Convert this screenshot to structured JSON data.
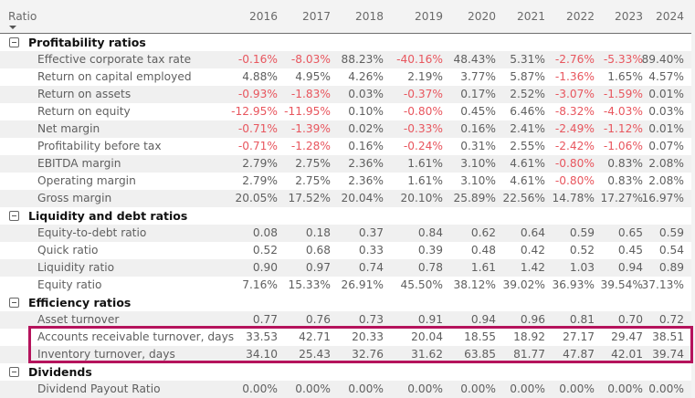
{
  "header": {
    "ratio_label": "Ratio",
    "sort_icon": "sort-descending-icon",
    "years": [
      "2016",
      "2017",
      "2018",
      "2019",
      "2020",
      "2021",
      "2022",
      "2023",
      "2024"
    ]
  },
  "groups": [
    {
      "label": "Profitability ratios",
      "toggle_icon": "collapse-minus-icon",
      "rows": [
        {
          "label": "Effective corporate tax rate",
          "values": [
            "-0.16%",
            "-8.03%",
            "88.23%",
            "-40.16%",
            "48.43%",
            "5.31%",
            "-2.76%",
            "-5.33%",
            "89.40%"
          ]
        },
        {
          "label": "Return on capital employed",
          "values": [
            "4.88%",
            "4.95%",
            "4.26%",
            "2.19%",
            "3.77%",
            "5.87%",
            "-1.36%",
            "1.65%",
            "4.57%"
          ]
        },
        {
          "label": "Return on assets",
          "values": [
            "-0.93%",
            "-1.83%",
            "0.03%",
            "-0.37%",
            "0.17%",
            "2.52%",
            "-3.07%",
            "-1.59%",
            "0.01%"
          ]
        },
        {
          "label": "Return on equity",
          "values": [
            "-12.95%",
            "-11.95%",
            "0.10%",
            "-0.80%",
            "0.45%",
            "6.46%",
            "-8.32%",
            "-4.03%",
            "0.03%"
          ]
        },
        {
          "label": "Net margin",
          "values": [
            "-0.71%",
            "-1.39%",
            "0.02%",
            "-0.33%",
            "0.16%",
            "2.41%",
            "-2.49%",
            "-1.12%",
            "0.01%"
          ]
        },
        {
          "label": "Profitability before tax",
          "values": [
            "-0.71%",
            "-1.28%",
            "0.16%",
            "-0.24%",
            "0.31%",
            "2.55%",
            "-2.42%",
            "-1.06%",
            "0.07%"
          ]
        },
        {
          "label": "EBITDA margin",
          "values": [
            "2.79%",
            "2.75%",
            "2.36%",
            "1.61%",
            "3.10%",
            "4.61%",
            "-0.80%",
            "0.83%",
            "2.08%"
          ]
        },
        {
          "label": "Operating margin",
          "values": [
            "2.79%",
            "2.75%",
            "2.36%",
            "1.61%",
            "3.10%",
            "4.61%",
            "-0.80%",
            "0.83%",
            "2.08%"
          ]
        },
        {
          "label": "Gross margin",
          "values": [
            "20.05%",
            "17.52%",
            "20.04%",
            "20.10%",
            "25.89%",
            "22.56%",
            "14.78%",
            "17.27%",
            "16.97%"
          ]
        }
      ]
    },
    {
      "label": "Liquidity and debt ratios",
      "toggle_icon": "collapse-minus-icon",
      "rows": [
        {
          "label": "Equity-to-debt ratio",
          "values": [
            "0.08",
            "0.18",
            "0.37",
            "0.84",
            "0.62",
            "0.64",
            "0.59",
            "0.65",
            "0.59"
          ]
        },
        {
          "label": "Quick ratio",
          "values": [
            "0.52",
            "0.68",
            "0.33",
            "0.39",
            "0.48",
            "0.42",
            "0.52",
            "0.45",
            "0.54"
          ]
        },
        {
          "label": "Liquidity ratio",
          "values": [
            "0.90",
            "0.97",
            "0.74",
            "0.78",
            "1.61",
            "1.42",
            "1.03",
            "0.94",
            "0.89"
          ]
        },
        {
          "label": "Equity ratio",
          "values": [
            "7.16%",
            "15.33%",
            "26.91%",
            "45.50%",
            "38.12%",
            "39.02%",
            "36.93%",
            "39.54%",
            "37.13%"
          ]
        }
      ]
    },
    {
      "label": "Efficiency ratios",
      "toggle_icon": "collapse-minus-icon",
      "rows": [
        {
          "label": "Asset turnover",
          "values": [
            "0.77",
            "0.76",
            "0.73",
            "0.91",
            "0.94",
            "0.96",
            "0.81",
            "0.70",
            "0.72"
          ]
        },
        {
          "label": "Accounts receivable turnover, days",
          "values": [
            "33.53",
            "42.71",
            "20.33",
            "20.04",
            "18.55",
            "18.92",
            "27.17",
            "29.47",
            "38.51"
          ],
          "highlighted": true
        },
        {
          "label": "Inventory turnover, days",
          "values": [
            "34.10",
            "25.43",
            "32.76",
            "31.62",
            "63.85",
            "81.77",
            "47.87",
            "42.01",
            "39.74"
          ],
          "highlighted": true
        }
      ]
    },
    {
      "label": "Dividends",
      "toggle_icon": "collapse-minus-icon",
      "rows": [
        {
          "label": "Dividend Payout Ratio",
          "values": [
            "0.00%",
            "0.00%",
            "0.00%",
            "0.00%",
            "0.00%",
            "0.00%",
            "0.00%",
            "0.00%",
            "0.00%"
          ]
        }
      ]
    }
  ],
  "colors": {
    "negative": "#e8565e",
    "highlight_border": "#b5135c",
    "text": "#5f5f5f",
    "group_text": "#111111"
  }
}
